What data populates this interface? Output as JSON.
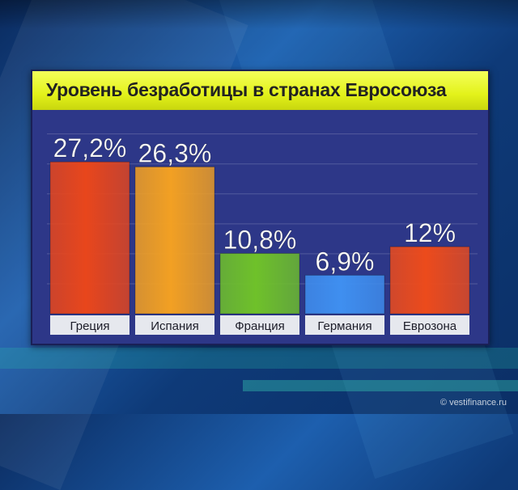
{
  "chart_data": {
    "type": "bar",
    "title": "Уровень безработицы в странах Евросоюза",
    "categories": [
      "Греция",
      "Испания",
      "Франция",
      "Германия",
      "Еврозона"
    ],
    "values": [
      27.2,
      26.3,
      10.8,
      6.9,
      12
    ],
    "value_labels": [
      "27,2%",
      "26,3%",
      "10,8%",
      "6,9%",
      "12%"
    ],
    "bar_colors": [
      "#e8461c",
      "#f2a023",
      "#6fc12a",
      "#3f8ff0",
      "#ec4b1c"
    ],
    "ylim": [
      0,
      36.5
    ],
    "grid": true,
    "legend": "none"
  },
  "colors": {
    "title_bar": "#e3f21a",
    "plot_background": "#2d3788",
    "category_label_bg": "#e6e8ee"
  },
  "watermark": "© vestifinance.ru"
}
